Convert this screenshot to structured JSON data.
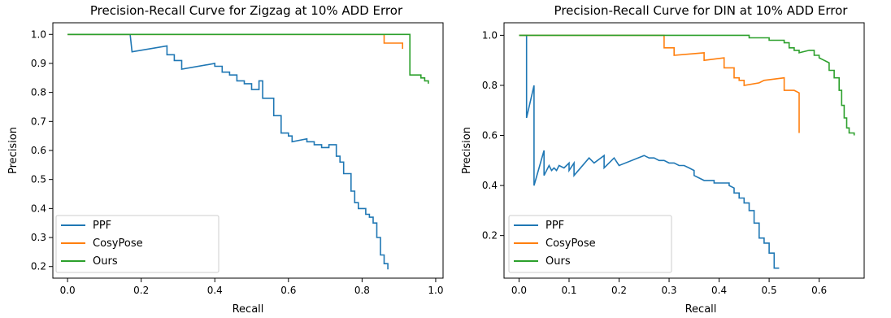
{
  "chart_data": [
    {
      "type": "line",
      "title": "Precision-Recall Curve for Zigzag at 10% ADD Error",
      "xlabel": "Recall",
      "ylabel": "Precision",
      "xlim": [
        -0.04,
        1.02
      ],
      "ylim": [
        0.16,
        1.04
      ],
      "xticks": [
        "0.0",
        "0.2",
        "0.4",
        "0.6",
        "0.8",
        "1.0"
      ],
      "yticks": [
        "0.2",
        "0.3",
        "0.4",
        "0.5",
        "0.6",
        "0.7",
        "0.8",
        "0.9",
        "1.0"
      ],
      "legend_position": "lower-left",
      "grid": false,
      "series": [
        {
          "name": "PPF",
          "color": "#1f77b4",
          "points": [
            [
              0.0,
              1.0
            ],
            [
              0.17,
              1.0
            ],
            [
              0.175,
              0.94
            ],
            [
              0.27,
              0.96
            ],
            [
              0.27,
              0.93
            ],
            [
              0.29,
              0.93
            ],
            [
              0.29,
              0.91
            ],
            [
              0.31,
              0.91
            ],
            [
              0.31,
              0.88
            ],
            [
              0.4,
              0.9
            ],
            [
              0.4,
              0.89
            ],
            [
              0.42,
              0.89
            ],
            [
              0.42,
              0.87
            ],
            [
              0.44,
              0.87
            ],
            [
              0.44,
              0.86
            ],
            [
              0.46,
              0.86
            ],
            [
              0.46,
              0.84
            ],
            [
              0.48,
              0.84
            ],
            [
              0.48,
              0.83
            ],
            [
              0.5,
              0.83
            ],
            [
              0.5,
              0.81
            ],
            [
              0.52,
              0.81
            ],
            [
              0.52,
              0.84
            ],
            [
              0.53,
              0.84
            ],
            [
              0.53,
              0.78
            ],
            [
              0.56,
              0.78
            ],
            [
              0.56,
              0.72
            ],
            [
              0.58,
              0.72
            ],
            [
              0.58,
              0.66
            ],
            [
              0.6,
              0.66
            ],
            [
              0.6,
              0.65
            ],
            [
              0.61,
              0.65
            ],
            [
              0.61,
              0.63
            ],
            [
              0.65,
              0.64
            ],
            [
              0.65,
              0.63
            ],
            [
              0.67,
              0.63
            ],
            [
              0.67,
              0.62
            ],
            [
              0.69,
              0.62
            ],
            [
              0.69,
              0.61
            ],
            [
              0.71,
              0.61
            ],
            [
              0.71,
              0.62
            ],
            [
              0.73,
              0.62
            ],
            [
              0.73,
              0.58
            ],
            [
              0.74,
              0.58
            ],
            [
              0.74,
              0.56
            ],
            [
              0.75,
              0.56
            ],
            [
              0.75,
              0.52
            ],
            [
              0.77,
              0.52
            ],
            [
              0.77,
              0.46
            ],
            [
              0.78,
              0.46
            ],
            [
              0.78,
              0.42
            ],
            [
              0.79,
              0.42
            ],
            [
              0.79,
              0.4
            ],
            [
              0.81,
              0.4
            ],
            [
              0.81,
              0.38
            ],
            [
              0.82,
              0.38
            ],
            [
              0.82,
              0.37
            ],
            [
              0.83,
              0.37
            ],
            [
              0.83,
              0.35
            ],
            [
              0.84,
              0.35
            ],
            [
              0.84,
              0.3
            ],
            [
              0.85,
              0.3
            ],
            [
              0.85,
              0.24
            ],
            [
              0.86,
              0.24
            ],
            [
              0.86,
              0.21
            ],
            [
              0.87,
              0.21
            ],
            [
              0.87,
              0.19
            ]
          ]
        },
        {
          "name": "CosyPose",
          "color": "#ff7f0e",
          "points": [
            [
              0.0,
              1.0
            ],
            [
              0.86,
              1.0
            ],
            [
              0.86,
              0.97
            ],
            [
              0.91,
              0.97
            ],
            [
              0.91,
              0.95
            ]
          ]
        },
        {
          "name": "Ours",
          "color": "#2ca02c",
          "points": [
            [
              0.0,
              1.0
            ],
            [
              0.93,
              1.0
            ],
            [
              0.93,
              0.86
            ],
            [
              0.96,
              0.86
            ],
            [
              0.96,
              0.85
            ],
            [
              0.97,
              0.85
            ],
            [
              0.97,
              0.84
            ],
            [
              0.98,
              0.84
            ],
            [
              0.98,
              0.83
            ]
          ]
        }
      ]
    },
    {
      "type": "line",
      "title": "Precision-Recall Curve for DIN at 10% ADD Error",
      "xlabel": "Recall",
      "ylabel": "Precision",
      "xlim": [
        -0.03,
        0.69
      ],
      "ylim": [
        0.03,
        1.05
      ],
      "xticks": [
        "0.0",
        "0.1",
        "0.2",
        "0.3",
        "0.4",
        "0.5",
        "0.6"
      ],
      "yticks": [
        "0.2",
        "0.4",
        "0.6",
        "0.8",
        "1.0"
      ],
      "legend_position": "lower-left",
      "grid": false,
      "series": [
        {
          "name": "PPF",
          "color": "#1f77b4",
          "points": [
            [
              0.0,
              1.0
            ],
            [
              0.015,
              1.0
            ],
            [
              0.015,
              0.67
            ],
            [
              0.03,
              0.8
            ],
            [
              0.03,
              0.4
            ],
            [
              0.05,
              0.54
            ],
            [
              0.05,
              0.44
            ],
            [
              0.06,
              0.48
            ],
            [
              0.065,
              0.46
            ],
            [
              0.07,
              0.47
            ],
            [
              0.075,
              0.46
            ],
            [
              0.08,
              0.48
            ],
            [
              0.09,
              0.47
            ],
            [
              0.1,
              0.49
            ],
            [
              0.1,
              0.46
            ],
            [
              0.11,
              0.49
            ],
            [
              0.11,
              0.44
            ],
            [
              0.14,
              0.51
            ],
            [
              0.15,
              0.49
            ],
            [
              0.17,
              0.52
            ],
            [
              0.17,
              0.47
            ],
            [
              0.19,
              0.51
            ],
            [
              0.2,
              0.48
            ],
            [
              0.25,
              0.52
            ],
            [
              0.26,
              0.51
            ],
            [
              0.27,
              0.51
            ],
            [
              0.28,
              0.5
            ],
            [
              0.29,
              0.5
            ],
            [
              0.3,
              0.49
            ],
            [
              0.31,
              0.49
            ],
            [
              0.32,
              0.48
            ],
            [
              0.33,
              0.48
            ],
            [
              0.34,
              0.47
            ],
            [
              0.35,
              0.46
            ],
            [
              0.35,
              0.44
            ],
            [
              0.36,
              0.43
            ],
            [
              0.37,
              0.42
            ],
            [
              0.39,
              0.42
            ],
            [
              0.39,
              0.41
            ],
            [
              0.42,
              0.41
            ],
            [
              0.42,
              0.4
            ],
            [
              0.43,
              0.39
            ],
            [
              0.43,
              0.37
            ],
            [
              0.44,
              0.37
            ],
            [
              0.44,
              0.35
            ],
            [
              0.45,
              0.35
            ],
            [
              0.45,
              0.33
            ],
            [
              0.46,
              0.33
            ],
            [
              0.46,
              0.3
            ],
            [
              0.47,
              0.3
            ],
            [
              0.47,
              0.25
            ],
            [
              0.48,
              0.25
            ],
            [
              0.48,
              0.19
            ],
            [
              0.49,
              0.19
            ],
            [
              0.49,
              0.17
            ],
            [
              0.5,
              0.17
            ],
            [
              0.5,
              0.13
            ],
            [
              0.51,
              0.13
            ],
            [
              0.51,
              0.07
            ],
            [
              0.52,
              0.07
            ]
          ]
        },
        {
          "name": "CosyPose",
          "color": "#ff7f0e",
          "points": [
            [
              0.0,
              1.0
            ],
            [
              0.29,
              1.0
            ],
            [
              0.29,
              0.95
            ],
            [
              0.31,
              0.95
            ],
            [
              0.31,
              0.92
            ],
            [
              0.37,
              0.93
            ],
            [
              0.37,
              0.9
            ],
            [
              0.41,
              0.91
            ],
            [
              0.41,
              0.87
            ],
            [
              0.43,
              0.87
            ],
            [
              0.43,
              0.83
            ],
            [
              0.44,
              0.83
            ],
            [
              0.44,
              0.82
            ],
            [
              0.45,
              0.82
            ],
            [
              0.45,
              0.8
            ],
            [
              0.48,
              0.81
            ],
            [
              0.49,
              0.82
            ],
            [
              0.53,
              0.83
            ],
            [
              0.53,
              0.78
            ],
            [
              0.55,
              0.78
            ],
            [
              0.56,
              0.77
            ],
            [
              0.56,
              0.61
            ]
          ]
        },
        {
          "name": "Ours",
          "color": "#2ca02c",
          "points": [
            [
              0.0,
              1.0
            ],
            [
              0.46,
              1.0
            ],
            [
              0.46,
              0.99
            ],
            [
              0.5,
              0.99
            ],
            [
              0.5,
              0.98
            ],
            [
              0.53,
              0.98
            ],
            [
              0.53,
              0.97
            ],
            [
              0.54,
              0.97
            ],
            [
              0.54,
              0.95
            ],
            [
              0.55,
              0.95
            ],
            [
              0.55,
              0.94
            ],
            [
              0.56,
              0.94
            ],
            [
              0.56,
              0.93
            ],
            [
              0.58,
              0.94
            ],
            [
              0.59,
              0.94
            ],
            [
              0.59,
              0.92
            ],
            [
              0.6,
              0.92
            ],
            [
              0.6,
              0.91
            ],
            [
              0.61,
              0.9
            ],
            [
              0.62,
              0.89
            ],
            [
              0.62,
              0.86
            ],
            [
              0.63,
              0.86
            ],
            [
              0.63,
              0.83
            ],
            [
              0.64,
              0.83
            ],
            [
              0.64,
              0.78
            ],
            [
              0.645,
              0.78
            ],
            [
              0.645,
              0.72
            ],
            [
              0.65,
              0.72
            ],
            [
              0.65,
              0.67
            ],
            [
              0.655,
              0.67
            ],
            [
              0.655,
              0.63
            ],
            [
              0.66,
              0.63
            ],
            [
              0.66,
              0.61
            ],
            [
              0.67,
              0.61
            ],
            [
              0.67,
              0.6
            ]
          ]
        }
      ]
    }
  ]
}
